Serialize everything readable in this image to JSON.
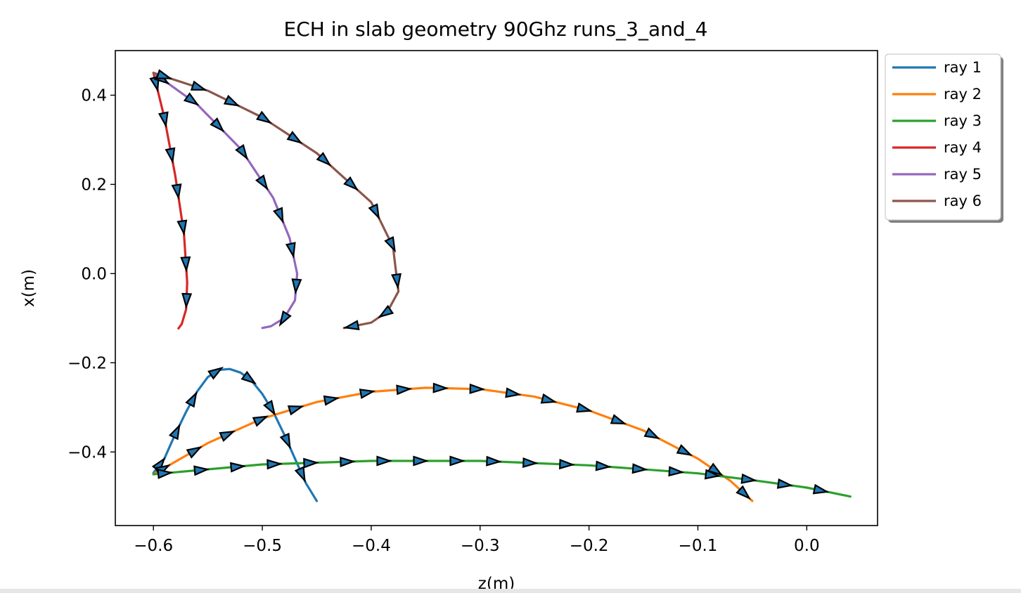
{
  "chart_data": {
    "type": "line",
    "title": "ECH in slab geometry 90Ghz  runs_3_and_4",
    "xlabel": "z(m)",
    "ylabel": "x(m)",
    "xlim": [
      -0.635,
      0.065
    ],
    "ylim": [
      -0.565,
      0.5
    ],
    "xticks": [
      -0.6,
      -0.5,
      -0.4,
      -0.3,
      -0.2,
      -0.1,
      0.0
    ],
    "xtick_labels": [
      "−0.6",
      "−0.5",
      "−0.4",
      "−0.3",
      "−0.2",
      "−0.1",
      "0.0"
    ],
    "yticks": [
      0.4,
      0.2,
      0.0,
      -0.2,
      -0.4
    ],
    "ytick_labels": [
      "0.4",
      "0.2",
      "0.0",
      "−0.2",
      "−0.4"
    ],
    "legend_position": "outside-top-right",
    "grid": false,
    "series": [
      {
        "name": "ray 1",
        "color": "#1f77b4",
        "points": [
          [
            -0.6,
            -0.447
          ],
          [
            -0.59,
            -0.415
          ],
          [
            -0.58,
            -0.36
          ],
          [
            -0.57,
            -0.31
          ],
          [
            -0.56,
            -0.265
          ],
          [
            -0.55,
            -0.232
          ],
          [
            -0.54,
            -0.216
          ],
          [
            -0.53,
            -0.214
          ],
          [
            -0.52,
            -0.222
          ],
          [
            -0.51,
            -0.24
          ],
          [
            -0.5,
            -0.27
          ],
          [
            -0.49,
            -0.31
          ],
          [
            -0.48,
            -0.36
          ],
          [
            -0.47,
            -0.415
          ],
          [
            -0.46,
            -0.47
          ],
          [
            -0.45,
            -0.51
          ]
        ]
      },
      {
        "name": "ray 2",
        "color": "#ff7f0e",
        "points": [
          [
            -0.6,
            -0.45
          ],
          [
            -0.55,
            -0.38
          ],
          [
            -0.5,
            -0.325
          ],
          [
            -0.45,
            -0.288
          ],
          [
            -0.4,
            -0.265
          ],
          [
            -0.35,
            -0.256
          ],
          [
            -0.3,
            -0.259
          ],
          [
            -0.25,
            -0.276
          ],
          [
            -0.2,
            -0.307
          ],
          [
            -0.15,
            -0.352
          ],
          [
            -0.1,
            -0.415
          ],
          [
            -0.07,
            -0.465
          ],
          [
            -0.05,
            -0.51
          ]
        ]
      },
      {
        "name": "ray 3",
        "color": "#2ca02c",
        "points": [
          [
            -0.6,
            -0.45
          ],
          [
            -0.5,
            -0.428
          ],
          [
            -0.4,
            -0.42
          ],
          [
            -0.3,
            -0.42
          ],
          [
            -0.2,
            -0.43
          ],
          [
            -0.1,
            -0.448
          ],
          [
            -0.05,
            -0.463
          ],
          [
            0.0,
            -0.48
          ],
          [
            0.04,
            -0.5
          ]
        ]
      },
      {
        "name": "ray 4",
        "color": "#d62728",
        "points": [
          [
            -0.6,
            0.45
          ],
          [
            -0.59,
            0.35
          ],
          [
            -0.58,
            0.22
          ],
          [
            -0.572,
            0.09
          ],
          [
            -0.569,
            -0.02
          ],
          [
            -0.57,
            -0.08
          ],
          [
            -0.574,
            -0.113
          ],
          [
            -0.577,
            -0.123
          ]
        ]
      },
      {
        "name": "ray 5",
        "color": "#9467bd",
        "points": [
          [
            -0.6,
            0.45
          ],
          [
            -0.56,
            0.38
          ],
          [
            -0.52,
            0.28
          ],
          [
            -0.49,
            0.17
          ],
          [
            -0.475,
            0.08
          ],
          [
            -0.468,
            0.0
          ],
          [
            -0.47,
            -0.06
          ],
          [
            -0.48,
            -0.1
          ],
          [
            -0.492,
            -0.118
          ],
          [
            -0.5,
            -0.122
          ]
        ]
      },
      {
        "name": "ray 6",
        "color": "#8c564b",
        "points": [
          [
            -0.6,
            0.45
          ],
          [
            -0.55,
            0.41
          ],
          [
            -0.5,
            0.35
          ],
          [
            -0.45,
            0.27
          ],
          [
            -0.4,
            0.16
          ],
          [
            -0.38,
            0.06
          ],
          [
            -0.375,
            -0.04
          ],
          [
            -0.385,
            -0.085
          ],
          [
            -0.4,
            -0.11
          ],
          [
            -0.425,
            -0.122
          ]
        ]
      }
    ]
  }
}
